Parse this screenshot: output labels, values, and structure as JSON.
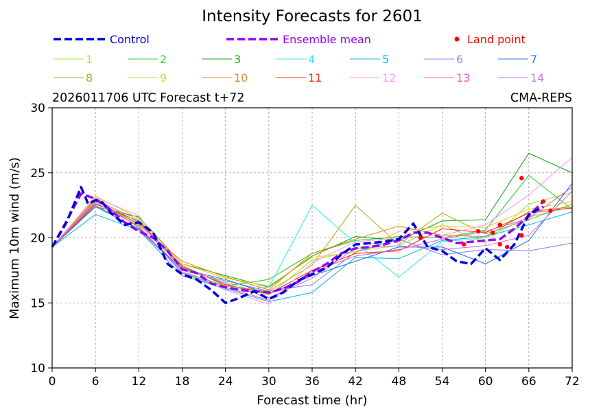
{
  "chart_data": {
    "type": "line",
    "title": "Intensity Forecasts for 2601",
    "subtitle_left": "2026011706 UTC Forecast t+72",
    "subtitle_right": "CMA-REPS",
    "xlabel": "Forecast time (hr)",
    "ylabel": "Maximum 10m wind (m/s)",
    "xlim": [
      0,
      72
    ],
    "ylim": [
      10,
      30
    ],
    "xticks": [
      0,
      6,
      12,
      18,
      24,
      30,
      36,
      42,
      48,
      54,
      60,
      66,
      72
    ],
    "yticks": [
      10,
      15,
      20,
      25,
      30
    ],
    "grid": true,
    "legend_placement": "top",
    "control": {
      "name": "Control",
      "color": "#0000dd",
      "x": [
        0,
        2,
        4,
        5,
        6,
        7,
        8,
        10,
        12,
        14,
        16,
        18,
        20,
        22,
        24,
        26,
        28,
        30,
        32,
        34,
        36,
        38,
        40,
        42,
        44,
        46,
        48,
        50,
        52,
        54,
        56,
        58,
        60,
        62,
        64,
        66,
        68
      ],
      "values": [
        19.3,
        21.2,
        23.9,
        22.6,
        22.9,
        22.7,
        22.0,
        21.0,
        21.2,
        20.4,
        18.0,
        17.2,
        16.8,
        16.0,
        15.0,
        15.4,
        15.9,
        15.3,
        15.8,
        16.7,
        17.2,
        17.7,
        18.7,
        19.5,
        19.6,
        19.7,
        19.9,
        21.1,
        19.3,
        19.0,
        18.2,
        18.0,
        19.2,
        18.3,
        19.5,
        21.8,
        22.4
      ]
    },
    "mean": {
      "name": "Ensemble mean",
      "color": "#9900ee",
      "x": [
        0,
        2,
        4,
        6,
        8,
        10,
        12,
        14,
        16,
        18,
        20,
        22,
        24,
        26,
        28,
        30,
        32,
        34,
        36,
        38,
        40,
        42,
        44,
        46,
        48,
        50,
        52,
        54,
        56,
        58,
        60,
        62,
        64,
        66,
        68
      ],
      "values": [
        19.3,
        21.3,
        23.4,
        23.0,
        22.2,
        21.2,
        20.5,
        20.0,
        19.0,
        17.6,
        17.3,
        16.5,
        16.2,
        16.0,
        15.9,
        15.8,
        16.1,
        16.6,
        17.4,
        18.0,
        18.8,
        19.2,
        19.3,
        19.5,
        19.8,
        20.4,
        20.4,
        20.0,
        19.6,
        19.7,
        19.8,
        19.9,
        20.7,
        21.7,
        22.8
      ]
    },
    "land_points": {
      "name": "Land point",
      "color": "#ff0000",
      "x": [
        51,
        57,
        59,
        61,
        62,
        62,
        63,
        65,
        65,
        68,
        69
      ],
      "values": [
        20.0,
        19.5,
        20.5,
        20.4,
        19.5,
        21.0,
        19.3,
        24.6,
        20.2,
        22.8,
        22.1
      ]
    },
    "members": [
      {
        "name": "1",
        "color": "#99ee33",
        "x": [
          0,
          6,
          12,
          18,
          24,
          30,
          36,
          42,
          48,
          54,
          60,
          66,
          72
        ],
        "values": [
          19.3,
          22.9,
          21.4,
          17.6,
          16.6,
          15.6,
          18.3,
          19.0,
          19.4,
          21.0,
          19.6,
          22.6,
          23.5
        ]
      },
      {
        "name": "2",
        "color": "#33cc33",
        "x": [
          0,
          6,
          12,
          18,
          24,
          30,
          36,
          42,
          48,
          54,
          60,
          66,
          72
        ],
        "values": [
          19.3,
          23.0,
          20.8,
          17.4,
          16.3,
          16.8,
          18.8,
          19.8,
          20.1,
          20.0,
          20.6,
          24.8,
          22.2
        ]
      },
      {
        "name": "3",
        "color": "#11aa11",
        "x": [
          0,
          6,
          12,
          18,
          24,
          30,
          36,
          42,
          48,
          54,
          60,
          66,
          72
        ],
        "values": [
          19.3,
          22.4,
          21.6,
          18.0,
          17.1,
          16.2,
          18.6,
          20.1,
          19.8,
          21.3,
          21.4,
          26.5,
          25.0
        ]
      },
      {
        "name": "4",
        "color": "#33eeee",
        "x": [
          0,
          6,
          12,
          18,
          24,
          30,
          36,
          42,
          48,
          54,
          60,
          66,
          72
        ],
        "values": [
          19.3,
          22.6,
          21.3,
          17.3,
          16.0,
          16.2,
          22.5,
          19.6,
          17.0,
          19.7,
          20.0,
          21.6,
          22.4
        ]
      },
      {
        "name": "5",
        "color": "#11bbdd",
        "x": [
          0,
          6,
          12,
          18,
          24,
          30,
          36,
          42,
          48,
          54,
          60,
          66,
          72
        ],
        "values": [
          19.3,
          21.8,
          20.6,
          17.1,
          16.1,
          15.1,
          15.8,
          18.5,
          18.4,
          19.8,
          20.1,
          21.0,
          22.0
        ]
      },
      {
        "name": "6",
        "color": "#8888ee",
        "x": [
          0,
          6,
          12,
          18,
          24,
          30,
          36,
          42,
          48,
          54,
          60,
          66,
          72
        ],
        "values": [
          19.3,
          22.5,
          20.6,
          17.5,
          16.7,
          15.9,
          16.4,
          18.9,
          19.9,
          18.7,
          19.1,
          19.0,
          19.6
        ]
      },
      {
        "name": "7",
        "color": "#2277dd",
        "x": [
          0,
          6,
          12,
          18,
          24,
          30,
          36,
          42,
          48,
          54,
          60,
          66,
          72
        ],
        "values": [
          19.3,
          22.4,
          20.7,
          17.6,
          16.8,
          15.7,
          17.1,
          18.2,
          19.3,
          19.3,
          18.0,
          19.8,
          24.2
        ]
      },
      {
        "name": "8",
        "color": "#bbaa22",
        "x": [
          0,
          6,
          12,
          18,
          24,
          30,
          36,
          42,
          48,
          54,
          60,
          66,
          72
        ],
        "values": [
          19.3,
          22.8,
          21.1,
          17.9,
          16.3,
          15.9,
          17.9,
          22.5,
          19.5,
          21.9,
          20.3,
          21.4,
          22.6
        ]
      },
      {
        "name": "9",
        "color": "#eecc22",
        "x": [
          0,
          6,
          12,
          18,
          24,
          30,
          36,
          42,
          48,
          54,
          60,
          66,
          72
        ],
        "values": [
          19.3,
          23.2,
          21.5,
          18.0,
          16.9,
          16.3,
          18.5,
          18.9,
          20.5,
          20.9,
          20.8,
          22.2,
          22.8
        ]
      },
      {
        "name": "10",
        "color": "#ee8822",
        "x": [
          0,
          6,
          12,
          18,
          24,
          30,
          36,
          42,
          48,
          54,
          60,
          66,
          72
        ],
        "values": [
          19.3,
          22.9,
          21.0,
          18.2,
          17.0,
          16.0,
          18.8,
          19.9,
          20.9,
          20.2,
          20.1,
          22.0,
          22.4
        ]
      },
      {
        "name": "11",
        "color": "#ee3322",
        "x": [
          0,
          6,
          12,
          18,
          24,
          30,
          36,
          42,
          48,
          54,
          60,
          66,
          72
        ],
        "values": [
          19.3,
          22.6,
          21.3,
          17.8,
          16.4,
          15.7,
          17.5,
          18.8,
          19.0,
          20.7,
          20.4,
          21.9,
          22.3
        ]
      },
      {
        "name": "12",
        "color": "#ff99ee",
        "x": [
          0,
          6,
          12,
          18,
          24,
          30,
          36,
          42,
          48,
          54,
          60,
          66,
          72
        ],
        "values": [
          19.3,
          23.1,
          21.7,
          17.4,
          16.0,
          14.9,
          18.1,
          19.7,
          20.0,
          20.2,
          21.0,
          23.3,
          26.2
        ]
      },
      {
        "name": "13",
        "color": "#ee55cc",
        "x": [
          0,
          6,
          12,
          18,
          24,
          30,
          36,
          42,
          48,
          54,
          60,
          66,
          72
        ],
        "values": [
          19.3,
          22.7,
          20.9,
          17.3,
          16.2,
          15.2,
          17.4,
          18.6,
          19.1,
          19.9,
          20.5,
          21.5,
          23.9
        ]
      },
      {
        "name": "14",
        "color": "#cc77ee",
        "x": [
          0,
          6,
          12,
          18,
          24,
          30,
          36,
          42,
          48,
          54,
          60,
          66,
          72
        ],
        "values": [
          19.3,
          23.0,
          21.2,
          17.7,
          16.5,
          15.4,
          16.9,
          19.2,
          19.4,
          19.1,
          19.4,
          20.2,
          23.6
        ]
      }
    ]
  }
}
